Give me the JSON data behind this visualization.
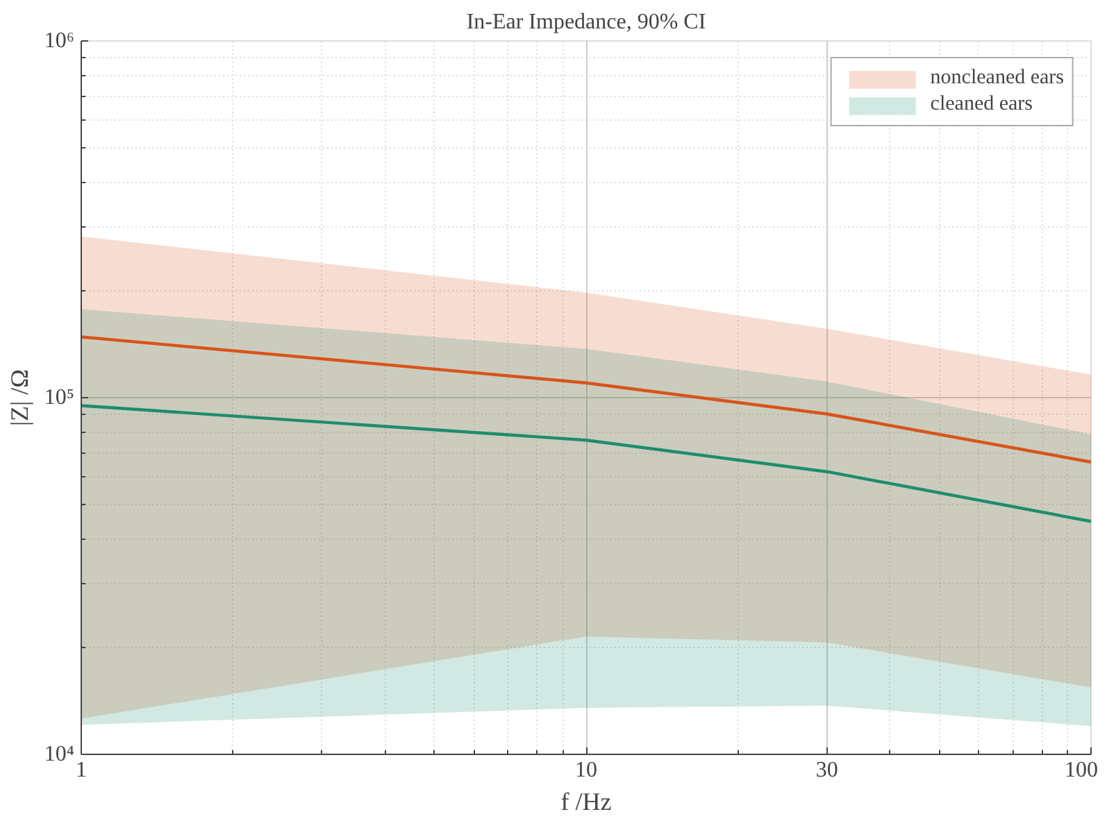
{
  "chart_data": {
    "type": "line",
    "title": "In-Ear Impedance, 90% CI",
    "xlabel": "f /Hz",
    "ylabel": "|Z| /Ω",
    "log": "xy",
    "grid": true,
    "legend": "top right",
    "marker": "none",
    "line_style": "solid",
    "x": [
      1,
      10,
      30,
      100
    ],
    "xlim": [
      1,
      100
    ],
    "xticks": [
      1,
      10,
      30,
      100
    ],
    "ylim": [
      10000,
      1000000
    ],
    "yticks": [
      {
        "value": 10000,
        "label": "10⁴"
      },
      {
        "value": 100000,
        "label": "10⁵"
      },
      {
        "value": 1000000,
        "label": "10⁶"
      }
    ],
    "series": [
      {
        "name": "noncleaned ears",
        "color": "#d95319",
        "values": [
          148000,
          110000,
          90000,
          66000
        ],
        "lower": [
          12600,
          21400,
          20600,
          15400
        ],
        "upper": [
          283000,
          197000,
          156000,
          116000
        ]
      },
      {
        "name": "cleaned ears",
        "color": "#1e8c6e",
        "values": [
          95000,
          76000,
          62000,
          45000
        ],
        "lower": [
          12100,
          13500,
          13700,
          12000
        ],
        "upper": [
          177000,
          137000,
          111000,
          79000
        ]
      }
    ]
  }
}
